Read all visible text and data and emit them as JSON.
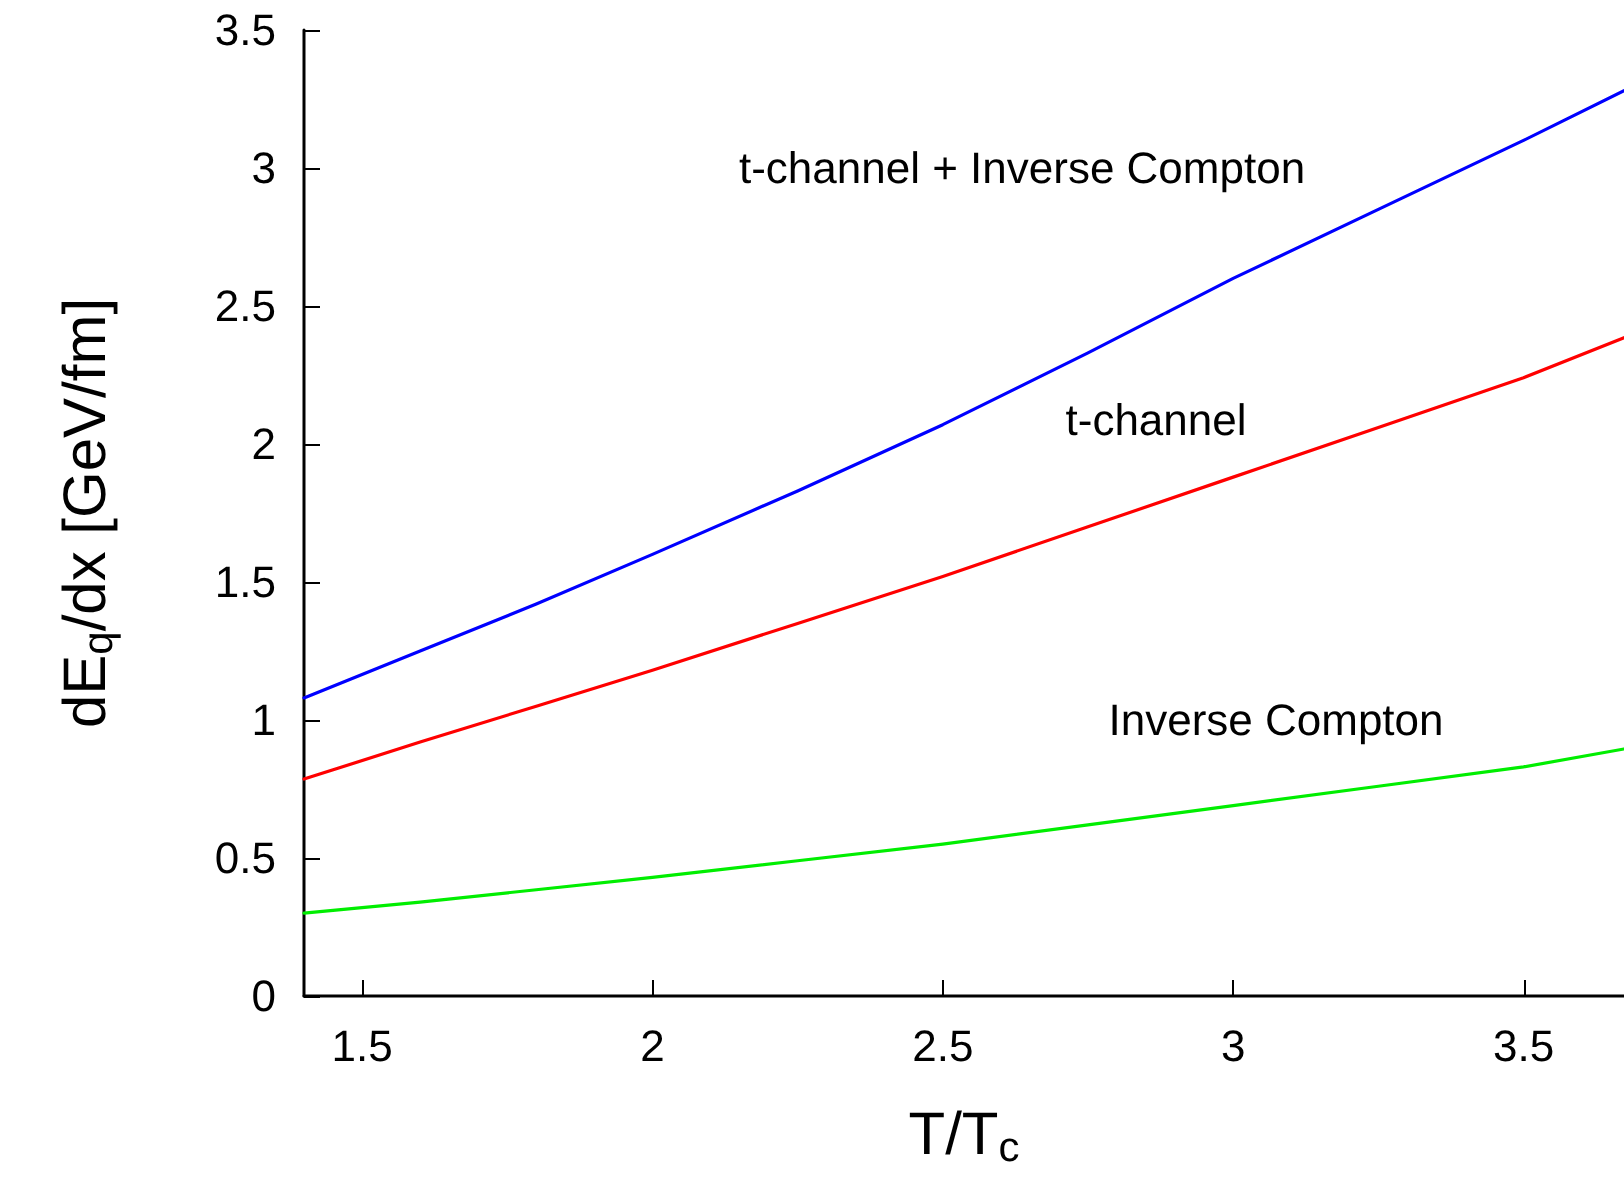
{
  "chart_data": {
    "type": "line",
    "xlabel": "T/T$_{c}$",
    "ylabel": "dE$_{q}$/dx [GeV/fm]",
    "x": [
      1.4,
      1.6,
      1.8,
      2.0,
      2.25,
      2.5,
      2.75,
      3.0,
      3.25,
      3.5,
      3.673
    ],
    "series": [
      {
        "name": "t-channel + Inverse Compton",
        "color": "#0000ff",
        "values": [
          1.08,
          1.25,
          1.42,
          1.6,
          1.83,
          2.07,
          2.33,
          2.6,
          2.85,
          3.1,
          3.28
        ]
      },
      {
        "name": "t-channel",
        "color": "#ff0000",
        "values": [
          0.786,
          0.92,
          1.05,
          1.18,
          1.35,
          1.52,
          1.7,
          1.88,
          2.06,
          2.24,
          2.385
        ]
      },
      {
        "name": "Inverse Compton",
        "color": "#00ee00",
        "values": [
          0.3,
          0.34,
          0.385,
          0.43,
          0.49,
          0.55,
          0.62,
          0.69,
          0.76,
          0.83,
          0.895
        ]
      }
    ],
    "xlim": [
      1.4,
      3.673
    ],
    "xticks": [
      1.5,
      2,
      2.5,
      3,
      3.5
    ],
    "ylim": [
      0,
      3.5
    ],
    "yticks": [
      0,
      0.5,
      1,
      1.5,
      2,
      2.5,
      3,
      3.5
    ],
    "grid": false,
    "marker": "none",
    "line_style": "solid"
  }
}
